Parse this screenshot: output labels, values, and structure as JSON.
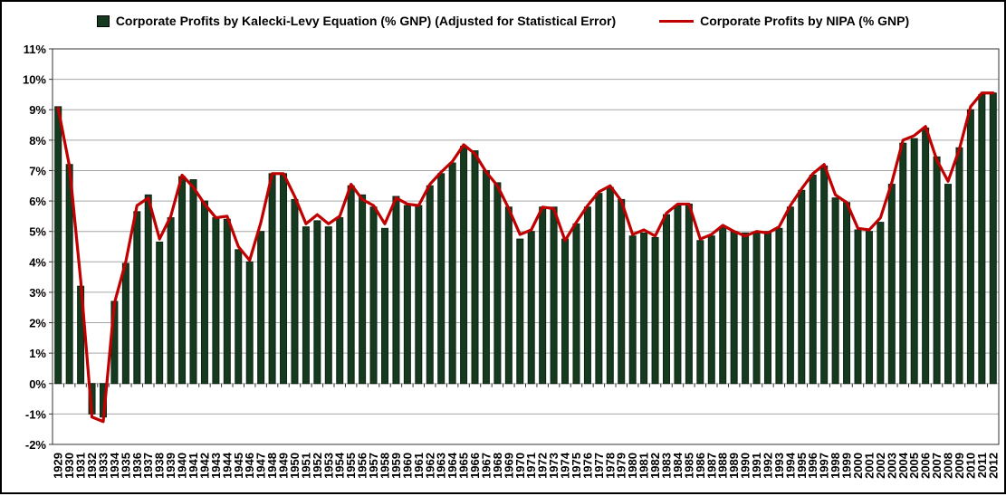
{
  "legend": {
    "items": [
      {
        "label": "Corporate Profits by Kalecki-Levy Equation (% GNP) (Adjusted for Statistical Error)",
        "marker": "square",
        "color": "#163A20"
      },
      {
        "label": "Corporate Profits by NIPA (% GNP)",
        "marker": "line",
        "color": "#C00000"
      }
    ]
  },
  "chart_data": {
    "type": "bar",
    "title": "",
    "xlabel": "",
    "ylabel": "",
    "ylim": [
      -2,
      11
    ],
    "ytick_step": 1,
    "ytick_labels": [
      "11%",
      "10%",
      "9%",
      "8%",
      "7%",
      "6%",
      "5%",
      "4%",
      "3%",
      "2%",
      "1%",
      "0%",
      "-1%",
      "-2%"
    ],
    "grid": true,
    "legend_position": "top",
    "x": [
      1929,
      1930,
      1931,
      1932,
      1933,
      1934,
      1935,
      1936,
      1937,
      1938,
      1939,
      1940,
      1941,
      1942,
      1943,
      1944,
      1945,
      1946,
      1947,
      1948,
      1949,
      1950,
      1951,
      1952,
      1953,
      1954,
      1955,
      1956,
      1957,
      1958,
      1959,
      1960,
      1961,
      1962,
      1963,
      1964,
      1965,
      1966,
      1967,
      1968,
      1969,
      1970,
      1971,
      1972,
      1973,
      1974,
      1975,
      1976,
      1977,
      1978,
      1979,
      1980,
      1981,
      1982,
      1983,
      1984,
      1985,
      1986,
      1987,
      1988,
      1989,
      1990,
      1991,
      1992,
      1993,
      1994,
      1995,
      1996,
      1997,
      1998,
      1999,
      2000,
      2001,
      2002,
      2003,
      2004,
      2005,
      2006,
      2007,
      2008,
      2009,
      2010,
      2011,
      2012
    ],
    "series": [
      {
        "name": "Corporate Profits by Kalecki-Levy Equation (% GNP) (Adjusted for Statistical Error)",
        "type": "bar",
        "color": "#163A20",
        "values": [
          9.1,
          7.2,
          3.2,
          -1.0,
          -1.1,
          2.7,
          3.95,
          5.65,
          6.2,
          4.65,
          5.45,
          6.8,
          6.7,
          6.0,
          5.45,
          5.4,
          4.4,
          4.0,
          5.0,
          6.9,
          6.9,
          6.05,
          5.15,
          5.35,
          5.15,
          5.45,
          6.5,
          6.2,
          5.8,
          5.1,
          6.15,
          5.85,
          5.85,
          6.5,
          6.9,
          7.25,
          7.8,
          7.65,
          7.0,
          6.6,
          5.8,
          4.75,
          5.0,
          5.8,
          5.8,
          4.75,
          5.25,
          5.8,
          6.25,
          6.45,
          6.05,
          4.85,
          4.95,
          4.8,
          5.55,
          5.85,
          5.9,
          4.7,
          4.85,
          5.15,
          5.0,
          4.95,
          4.95,
          5.0,
          5.1,
          5.8,
          6.35,
          6.85,
          7.15,
          6.1,
          5.95,
          5.05,
          5.0,
          5.3,
          6.55,
          7.9,
          8.05,
          8.4,
          7.45,
          6.55,
          7.75,
          9.0,
          9.5,
          9.55
        ]
      },
      {
        "name": "Corporate Profits by NIPA (% GNP)",
        "type": "line",
        "color": "#C00000",
        "values": [
          9.05,
          7.15,
          3.4,
          -1.1,
          -1.25,
          2.65,
          4.0,
          5.85,
          6.1,
          4.75,
          5.5,
          6.85,
          6.45,
          5.9,
          5.45,
          5.5,
          4.5,
          4.05,
          5.3,
          6.9,
          6.9,
          6.15,
          5.25,
          5.55,
          5.25,
          5.5,
          6.55,
          6.05,
          5.85,
          5.25,
          6.1,
          5.9,
          5.85,
          6.55,
          6.95,
          7.3,
          7.85,
          7.55,
          6.95,
          6.5,
          5.75,
          4.9,
          5.05,
          5.8,
          5.75,
          4.7,
          5.3,
          5.85,
          6.3,
          6.5,
          6.0,
          4.9,
          5.05,
          4.85,
          5.6,
          5.9,
          5.9,
          4.75,
          4.9,
          5.2,
          5.0,
          4.85,
          5.0,
          4.95,
          5.15,
          5.85,
          6.4,
          6.9,
          7.2,
          6.2,
          5.95,
          5.1,
          5.05,
          5.45,
          6.6,
          8.0,
          8.15,
          8.45,
          7.35,
          6.65,
          7.7,
          9.1,
          9.55,
          9.55
        ]
      }
    ],
    "colors": {
      "bar": "#163A20",
      "bar_stroke": "#0C2412",
      "line": "#C00000",
      "grid": "#A6A6A6",
      "plot_border": "#333333",
      "axis_text": "#000000"
    }
  }
}
